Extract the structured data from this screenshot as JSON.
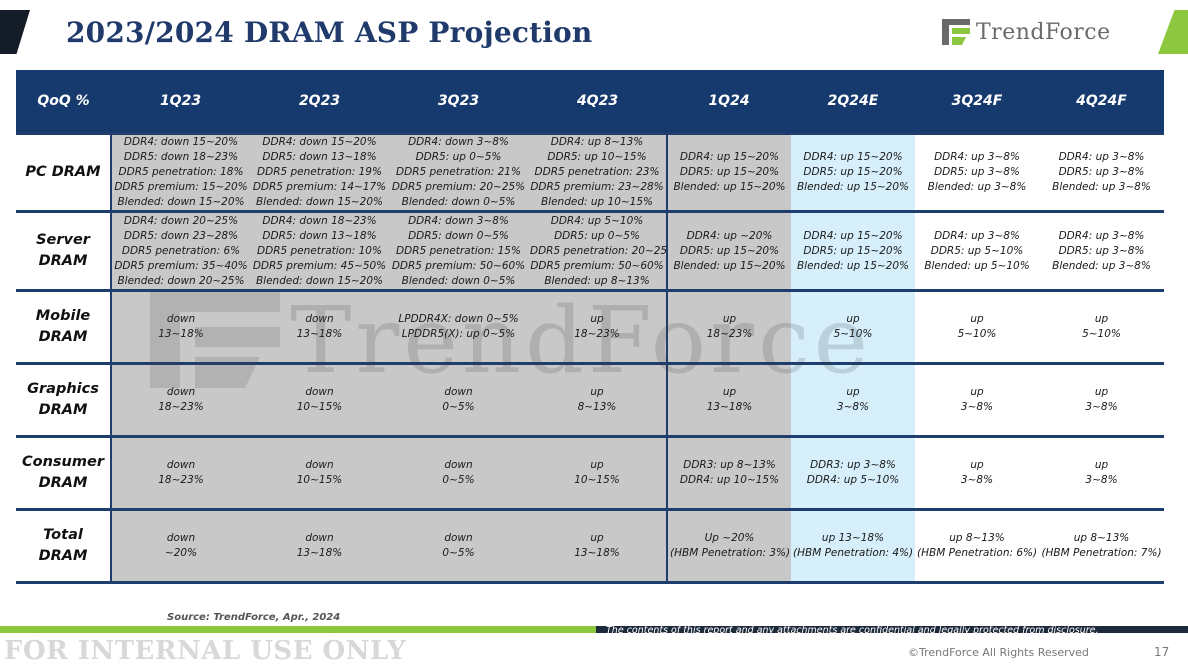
{
  "header": {
    "title": "2023/2024 DRAM ASP Projection",
    "logo_text": "TrendForce"
  },
  "colors": {
    "navy": "#173a6e",
    "green": "#8dc63f",
    "gray_cell": "#c8c8c8",
    "blue_cell": "#d6effb"
  },
  "table": {
    "corner": "QoQ %",
    "columns": [
      "1Q23",
      "2Q23",
      "3Q23",
      "4Q23",
      "1Q24",
      "2Q24E",
      "3Q24F",
      "4Q24F"
    ],
    "column_shading": [
      "gray",
      "gray",
      "gray",
      "gray",
      "gray",
      "blue",
      "white",
      "white"
    ],
    "rows": [
      {
        "label": [
          "PC DRAM"
        ],
        "cells": [
          [
            "DDR4: down 15~20%",
            "DDR5: down 18~23%",
            "DDR5 penetration: 18%",
            "DDR5 premium: 15~20%",
            "Blended: down 15~20%"
          ],
          [
            "DDR4: down 15~20%",
            "DDR5: down 13~18%",
            "DDR5 penetration: 19%",
            "DDR5 premium: 14~17%",
            "Blended: down 15~20%"
          ],
          [
            "DDR4: down 3~8%",
            "DDR5: up 0~5%",
            "DDR5 penetration: 21%",
            "DDR5 premium: 20~25%",
            "Blended: down 0~5%"
          ],
          [
            "DDR4: up 8~13%",
            "DDR5:  up 10~15%",
            "DDR5 penetration: 23%",
            "DDR5 premium: 23~28%",
            "Blended: up 10~15%"
          ],
          [
            "DDR4: up 15~20%",
            "DDR5: up 15~20%",
            "Blended: up 15~20%"
          ],
          [
            "DDR4: up 15~20%",
            "DDR5: up 15~20%",
            "Blended: up 15~20%"
          ],
          [
            "DDR4: up 3~8%",
            "DDR5: up 3~8%",
            "Blended: up 3~8%"
          ],
          [
            "DDR4: up 3~8%",
            "DDR5: up 3~8%",
            "Blended: up 3~8%"
          ]
        ]
      },
      {
        "label": [
          "Server",
          "DRAM"
        ],
        "cells": [
          [
            "DDR4: down 20~25%",
            "DDR5: down 23~28%",
            "DDR5 penetration: 6%",
            "DDR5 premium: 35~40%",
            "Blended: down 20~25%"
          ],
          [
            "DDR4: down 18~23%",
            "DDR5: down 13~18%",
            "DDR5 penetration: 10%",
            "DDR5 premium: 45~50%",
            "Blended: down 15~20%"
          ],
          [
            "DDR4: down 3~8%",
            "DDR5: down 0~5%",
            "DDR5 penetration: 15%",
            "DDR5 premium: 50~60%",
            "Blended: down 0~5%"
          ],
          [
            "DDR4: up 5~10%",
            "DDR5: up 0~5%",
            "DDR5 penetration: 20~25%",
            "DDR5 premium: 50~60%",
            "Blended: up 8~13%"
          ],
          [
            "DDR4: up ~20%",
            "DDR5: up 15~20%",
            "Blended: up 15~20%"
          ],
          [
            "DDR4: up 15~20%",
            "DDR5: up 15~20%",
            "Blended: up 15~20%"
          ],
          [
            "DDR4: up 3~8%",
            "DDR5: up 5~10%",
            "Blended: up 5~10%"
          ],
          [
            "DDR4: up 3~8%",
            "DDR5: up 3~8%",
            "Blended: up 3~8%"
          ]
        ]
      },
      {
        "label": [
          "Mobile",
          "DRAM"
        ],
        "cells": [
          [
            "down",
            "13~18%"
          ],
          [
            "down",
            "13~18%"
          ],
          [
            "LPDDR4X: down 0~5%",
            "LPDDR5(X): up 0~5%"
          ],
          [
            "up",
            "18~23%"
          ],
          [
            "up",
            "18~23%"
          ],
          [
            "up",
            "5~10%"
          ],
          [
            "up",
            "5~10%"
          ],
          [
            "up",
            "5~10%"
          ]
        ]
      },
      {
        "label": [
          "Graphics",
          "DRAM"
        ],
        "cells": [
          [
            "down",
            "18~23%"
          ],
          [
            "down",
            "10~15%"
          ],
          [
            "down",
            "0~5%"
          ],
          [
            "up",
            "8~13%"
          ],
          [
            "up",
            "13~18%"
          ],
          [
            "up",
            "3~8%"
          ],
          [
            "up",
            "3~8%"
          ],
          [
            "up",
            "3~8%"
          ]
        ]
      },
      {
        "label": [
          "Consumer",
          "DRAM"
        ],
        "cells": [
          [
            "down",
            "18~23%"
          ],
          [
            "down",
            "10~15%"
          ],
          [
            "down",
            "0~5%"
          ],
          [
            "up",
            "10~15%"
          ],
          [
            "DDR3: up 8~13%",
            "DDR4: up 10~15%"
          ],
          [
            "DDR3: up 3~8%",
            "DDR4: up 5~10%"
          ],
          [
            "up",
            "3~8%"
          ],
          [
            "up",
            "3~8%"
          ]
        ]
      },
      {
        "label": [
          "Total",
          "DRAM"
        ],
        "cells": [
          [
            "down",
            "~20%"
          ],
          [
            "down",
            "13~18%"
          ],
          [
            "down",
            "0~5%"
          ],
          [
            "up",
            "13~18%"
          ],
          [
            "Up ~20%",
            "(HBM Penetration: 3%)"
          ],
          [
            "up 13~18%",
            "(HBM Penetration: 4%)"
          ],
          [
            "up 8~13%",
            "(HBM Penetration: 6%)"
          ],
          [
            "up 8~13%",
            "(HBM Penetration: 7%)"
          ]
        ]
      }
    ]
  },
  "footer": {
    "source": "Source: TrendForce, Apr., 2024",
    "confidential": "The contents of this report and any attachments are confidential and legally protected from disclosure.",
    "internal": "FOR INTERNAL USE ONLY",
    "copyright": "©TrendForce All Rights Reserved",
    "page": "17"
  }
}
